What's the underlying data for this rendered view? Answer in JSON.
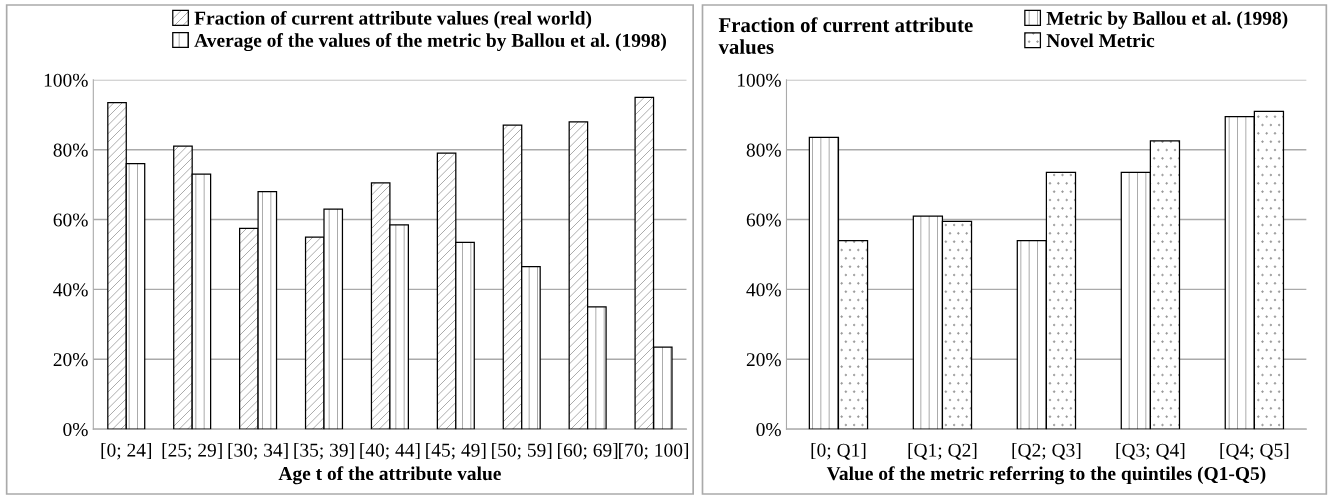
{
  "chart_data": [
    {
      "type": "bar",
      "xlabel": "Age t of the attribute value",
      "categories": [
        "[0; 24]",
        "[25; 29]",
        "[30; 34]",
        "[35; 39]",
        "[40; 44]",
        "[45; 49]",
        "[50; 59]",
        "[60; 69]",
        "[70; 100]"
      ],
      "series": [
        {
          "name": "Fraction of current attribute values (real world)",
          "color": "#000000",
          "values": [
            93.5,
            81,
            57.5,
            55,
            70.5,
            79,
            87,
            88,
            95
          ]
        },
        {
          "name": "Average of the values of the metric by Ballou et al. (1998)",
          "color": "#000000",
          "values": [
            76,
            73,
            68,
            63,
            58.5,
            53.5,
            46.5,
            35,
            23.5
          ]
        }
      ],
      "ylim": [
        0,
        100
      ],
      "yticks": [
        {
          "value": 0,
          "label": "0%"
        },
        {
          "value": 20,
          "label": "20%"
        },
        {
          "value": 40,
          "label": "40%"
        },
        {
          "value": 60,
          "label": "60%"
        },
        {
          "value": 80,
          "label": "80%"
        },
        {
          "value": 100,
          "label": "100%"
        }
      ],
      "grid": "y",
      "legend": "top right"
    },
    {
      "type": "bar",
      "title": "Fraction of current attribute values",
      "xlabel": "Value of the metric referring to the quintiles (Q1-Q5)",
      "categories": [
        "[0; Q1]",
        "[Q1; Q2]",
        "[Q2; Q3]",
        "[Q3; Q4]",
        "[Q4; Q5]"
      ],
      "series": [
        {
          "name": "Metric by Ballou et al. (1998)",
          "color": "#000000",
          "values": [
            83.5,
            61,
            54,
            73.5,
            89.5
          ]
        },
        {
          "name": "Novel Metric",
          "color": "#000000",
          "values": [
            54,
            59.5,
            73.5,
            82.5,
            91
          ]
        }
      ],
      "ylim": [
        0,
        100
      ],
      "yticks": [
        {
          "value": 0,
          "label": "0%"
        },
        {
          "value": 20,
          "label": "20%"
        },
        {
          "value": 40,
          "label": "40%"
        },
        {
          "value": 60,
          "label": "60%"
        },
        {
          "value": 80,
          "label": "80%"
        },
        {
          "value": 100,
          "label": "100%"
        }
      ],
      "grid": "y",
      "legend": "top right"
    }
  ]
}
